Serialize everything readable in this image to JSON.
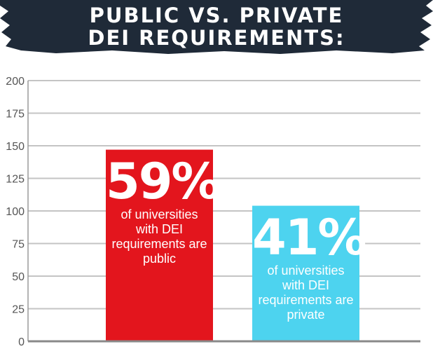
{
  "header": {
    "title_line1": "PUBLIC VS. PRIVATE",
    "title_line2": "DEI REQUIREMENTS:",
    "background_color": "#1f2a38"
  },
  "chart_data": {
    "type": "bar",
    "title": "PUBLIC VS. PRIVATE DEI REQUIREMENTS:",
    "xlabel": "",
    "ylabel": "",
    "ylim": [
      0,
      200
    ],
    "yticks": [
      0,
      25,
      50,
      75,
      100,
      125,
      150,
      175,
      200
    ],
    "grid": true,
    "bars": [
      {
        "value": 147,
        "label_pct": "59%",
        "label_text": "of universities with DEI requirements are public",
        "color": "#e3151d"
      },
      {
        "value": 104,
        "label_pct": "41%",
        "label_text": "of universities with DEI requirements are private",
        "color": "#4dd3ef"
      }
    ]
  }
}
